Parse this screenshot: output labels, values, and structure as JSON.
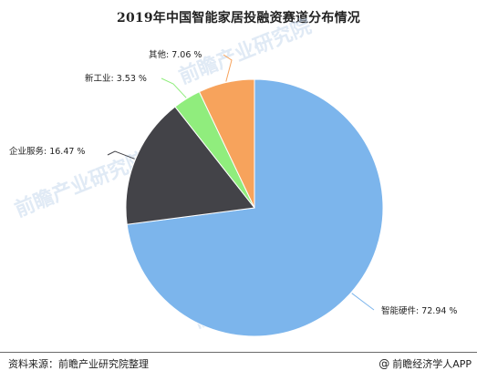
{
  "chart_data": {
    "type": "pie",
    "title": "2019年中国智能家居投融资赛道分布情况",
    "slices": [
      {
        "label": "智能硬件",
        "value": 72.94,
        "display": "智能硬件: 72.94 %",
        "color": "#7cb5ec"
      },
      {
        "label": "企业服务",
        "value": 16.47,
        "display": "企业服务: 16.47 %",
        "color": "#434348"
      },
      {
        "label": "新工业",
        "value": 3.53,
        "display": "新工业: 3.53 %",
        "color": "#90ed7d"
      },
      {
        "label": "其他",
        "value": 7.06,
        "display": "其他: 7.06 %",
        "color": "#f7a35c"
      }
    ],
    "start_angle": "top",
    "direction": "clockwise",
    "legend": "none"
  },
  "footer": {
    "source": "资料来源：前瞻产业研究院整理",
    "brand": "前瞻经济学人APP",
    "brand_icon": "at-icon"
  },
  "watermark": {
    "text": "前瞻产业研究院"
  }
}
